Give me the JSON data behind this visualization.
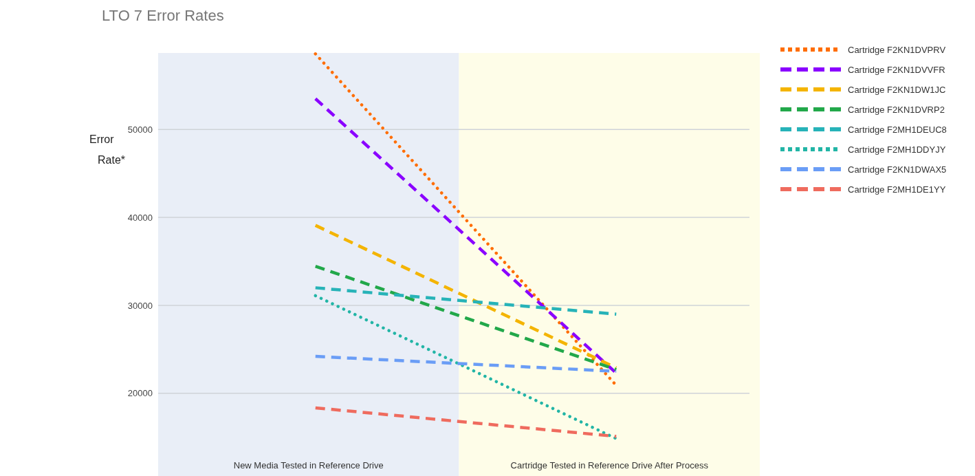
{
  "chart_data": {
    "type": "line",
    "title": "LTO 7 Error Rates",
    "ylabel": "Error Rate*",
    "categories": [
      "New Media Tested in Reference Drive",
      "Cartridge Tested in Reference Drive After Process"
    ],
    "ylim": [
      10600,
      58700
    ],
    "yticks": [
      20000,
      30000,
      40000,
      50000
    ],
    "grid": "y",
    "legend": "top right",
    "marker": "none",
    "bands": [
      {
        "axis": "x",
        "from": "New Media Tested in Reference Drive",
        "to": "New Media Tested in Reference Drive",
        "color": "#e9eef7"
      },
      {
        "axis": "x",
        "from": "Cartridge Tested in Reference Drive After Process",
        "to": "Cartridge Tested in Reference Drive After Process",
        "color": "#fefde8"
      }
    ],
    "series": [
      {
        "name": "Cartridge F2KN1DVPRV",
        "color": "#ff6d00",
        "line_style": "dotted",
        "values": [
          58600,
          20900
        ]
      },
      {
        "name": "Cartridge F2KN1DVVFR",
        "color": "#8a00ff",
        "line_style": "dashed",
        "values": [
          53500,
          22300
        ]
      },
      {
        "name": "Cartridge F2KN1DW1JC",
        "color": "#f4b400",
        "line_style": "dashed",
        "values": [
          39100,
          22900
        ]
      },
      {
        "name": "Cartridge F2KN1DVRP2",
        "color": "#22a84a",
        "line_style": "dashed",
        "values": [
          34450,
          22700
        ]
      },
      {
        "name": "Cartridge F2MH1DEUC8",
        "color": "#27b3b8",
        "line_style": "dashed",
        "values": [
          32000,
          29000
        ]
      },
      {
        "name": "Cartridge F2MH1DDYJY",
        "color": "#22b5a6",
        "line_style": "dotted",
        "values": [
          31100,
          14850
        ]
      },
      {
        "name": "Cartridge F2KN1DWAX5",
        "color": "#6a9df6",
        "line_style": "dashed",
        "values": [
          24200,
          22500
        ]
      },
      {
        "name": "Cartridge F2MH1DE1YY",
        "color": "#ef6b5e",
        "line_style": "dashed",
        "values": [
          18350,
          15100
        ]
      }
    ]
  }
}
